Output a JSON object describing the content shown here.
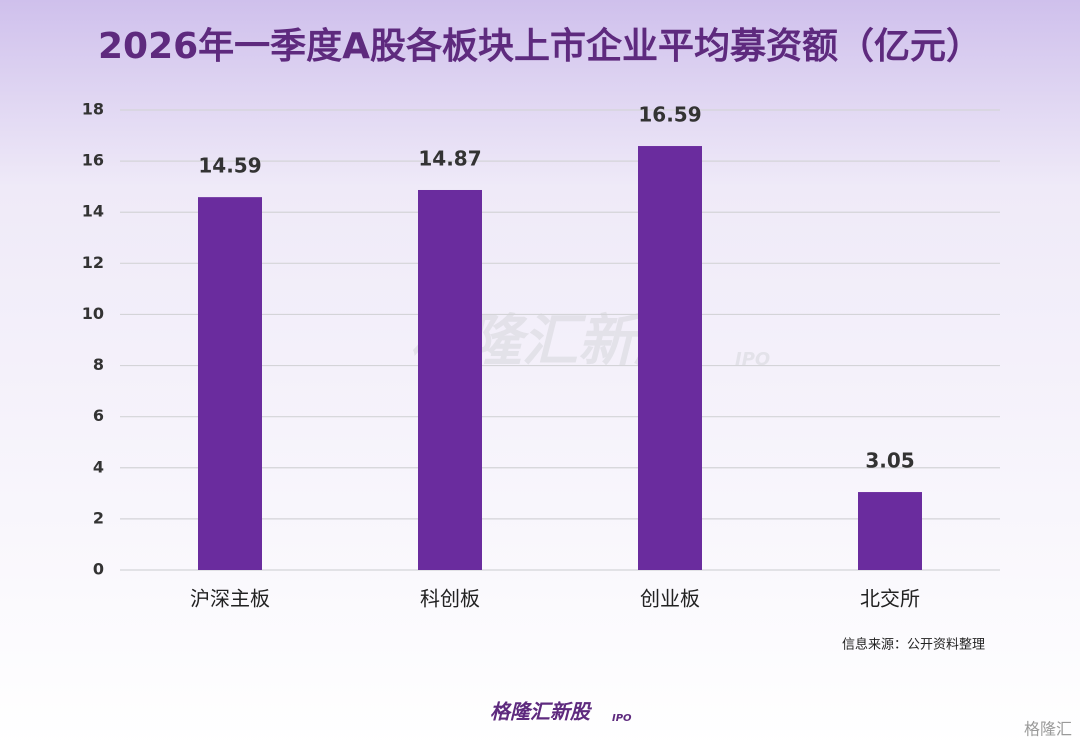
{
  "chart_data": {
    "type": "bar",
    "title": "2026年一季度A股各板块上市企业平均募资额（亿元）",
    "categories": [
      "沪深主板",
      "科创板",
      "创业板",
      "北交所"
    ],
    "values": [
      14.59,
      14.87,
      16.59,
      3.05
    ],
    "color": "#6a2c9e",
    "ylim": [
      0,
      18
    ],
    "yticks": [
      0,
      2,
      4,
      6,
      8,
      10,
      12,
      14,
      16,
      18
    ],
    "grid": true,
    "source": "信息来源：公开资料整理",
    "watermark": {
      "text": "格隆汇新股",
      "sub": "IPO"
    },
    "logo": {
      "text": "格隆汇新股",
      "sub": "IPO"
    },
    "corner_mark": "格隆汇"
  }
}
